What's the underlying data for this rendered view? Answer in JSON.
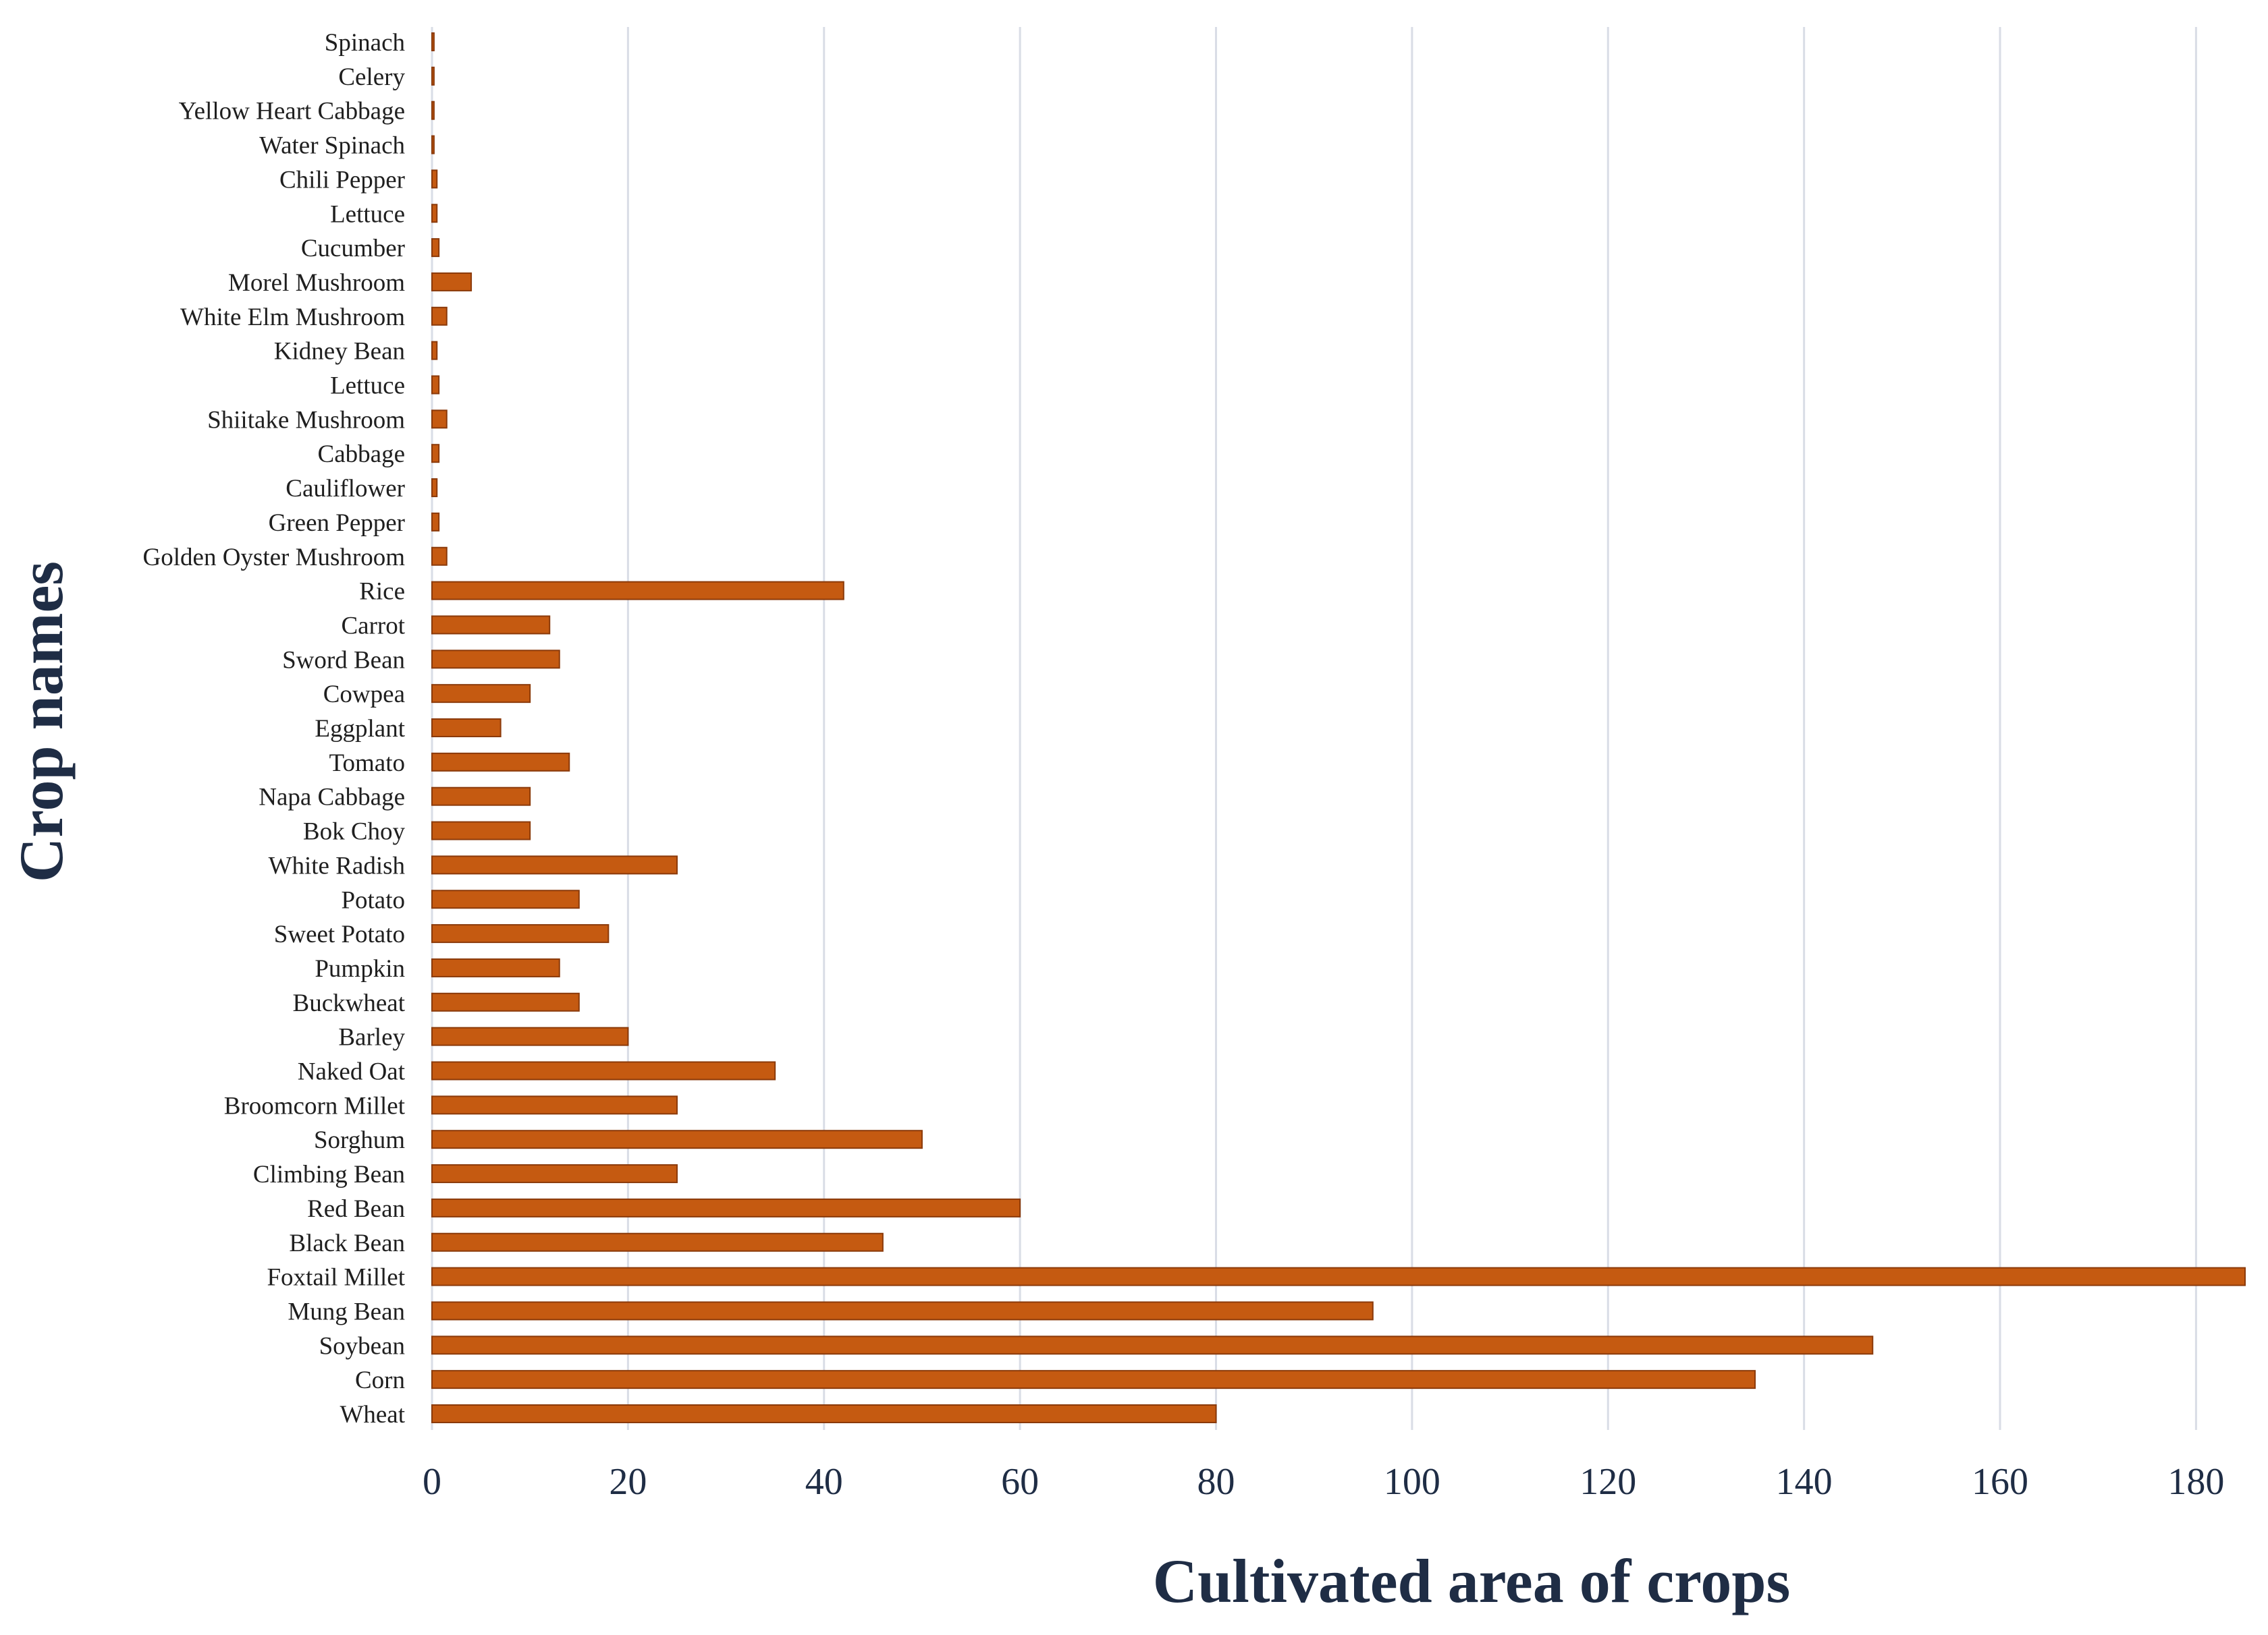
{
  "chart_data": {
    "type": "bar",
    "orientation": "horizontal",
    "title": "",
    "xlabel": "Cultivated area of crops",
    "ylabel": "Crop names",
    "xlim": [
      0,
      185
    ],
    "x_ticks": [
      "0",
      "20",
      "40",
      "60",
      "80",
      "100",
      "120",
      "140",
      "160",
      "180"
    ],
    "grid": "vertical",
    "bar_color": "#C55A11",
    "bar_edge_color": "#8B3A0A",
    "grid_color": "#D9DDE6",
    "categories": [
      "Spinach",
      "Celery",
      "Yellow Heart Cabbage",
      "Water Spinach",
      "Chili Pepper",
      "Lettuce",
      "Cucumber",
      "Morel Mushroom",
      "White Elm Mushroom",
      "Kidney Bean",
      "Lettuce",
      "Shiitake Mushroom",
      "Cabbage",
      "Cauliflower",
      "Green Pepper",
      "Golden Oyster Mushroom",
      "Rice",
      "Carrot",
      "Sword Bean",
      "Cowpea",
      "Eggplant",
      "Tomato",
      "Napa Cabbage",
      "Bok Choy",
      "White Radish",
      "Potato",
      "Sweet Potato",
      "Pumpkin",
      "Buckwheat",
      "Barley",
      "Naked Oat",
      "Broomcorn Millet",
      "Sorghum",
      "Climbing Bean",
      "Red Bean",
      "Black Bean",
      "Foxtail Millet",
      "Mung Bean",
      "Soybean",
      "Corn",
      "Wheat"
    ],
    "values": [
      0.2,
      0.2,
      0.2,
      0.2,
      0.5,
      0.5,
      0.7,
      4,
      1.5,
      0.5,
      0.7,
      1.5,
      0.7,
      0.5,
      0.7,
      1.5,
      42,
      12,
      13,
      10,
      7,
      14,
      10,
      10,
      25,
      15,
      18,
      13,
      15,
      20,
      35,
      25,
      50,
      25,
      60,
      46,
      185,
      96,
      147,
      135,
      80
    ]
  }
}
